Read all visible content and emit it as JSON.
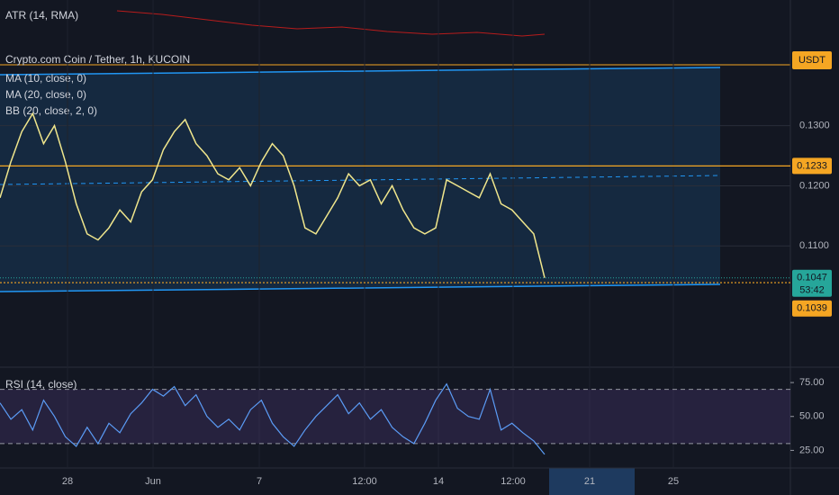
{
  "chart_data": {
    "type": "line",
    "title": "Crypto.com Coin / Tether, 1h, KUCOIN",
    "indicators": [
      "MA (10, close, 0)",
      "MA (20, close, 0)",
      "BB (20, close, 2, 0)"
    ],
    "atr_label": "ATR (14, RMA)",
    "currency": "USDT",
    "values": [
      0.118,
      0.124,
      0.129,
      0.132,
      0.127,
      0.13,
      0.124,
      0.117,
      0.112,
      0.111,
      0.113,
      0.116,
      0.114,
      0.119,
      0.121,
      0.126,
      0.129,
      0.131,
      0.127,
      0.125,
      0.122,
      0.121,
      0.123,
      0.12,
      0.124,
      0.127,
      0.125,
      0.12,
      0.113,
      0.112,
      0.115,
      0.118,
      0.122,
      0.12,
      0.121,
      0.117,
      0.12,
      0.116,
      0.113,
      0.112,
      0.113,
      0.121,
      0.12,
      0.119,
      0.118,
      0.122,
      0.117,
      0.116,
      0.114,
      0.112,
      0.1047
    ],
    "color": "#f0e68c",
    "ylim": [
      0.0903,
      0.1434
    ],
    "yticks": [
      {
        "value": 0.11,
        "label": "0.1100"
      },
      {
        "value": 0.12,
        "label": "0.1200"
      },
      {
        "value": 0.13,
        "label": "0.1300"
      }
    ],
    "levels": [
      {
        "value": 0.1233,
        "label": "0.1233",
        "color": "#f5a623"
      },
      {
        "value": 0.1039,
        "label": "0.1039",
        "color": "#f5a623"
      }
    ],
    "last_price": {
      "value": 0.1047,
      "label": "0.1047",
      "countdown": "53:42",
      "color": "#26a69a"
    },
    "xtick_labels": [
      "28",
      "Jun",
      "7",
      "12:00",
      "14",
      "12:00",
      "21",
      "25"
    ],
    "rsi": {
      "label": "RSI (14, close)",
      "values": [
        60,
        48,
        55,
        40,
        62,
        50,
        35,
        28,
        42,
        30,
        45,
        38,
        52,
        60,
        70,
        65,
        72,
        58,
        66,
        50,
        42,
        48,
        40,
        55,
        62,
        45,
        35,
        28,
        40,
        50,
        58,
        66,
        52,
        60,
        48,
        55,
        42,
        35,
        30,
        45,
        62,
        74,
        56,
        50,
        48,
        70,
        40,
        45,
        38,
        32,
        22
      ],
      "color": "#5b9cf6",
      "ylim": [
        12,
        85
      ],
      "yticks": [
        {
          "value": 25,
          "label": "25.00"
        },
        {
          "value": 50,
          "label": "50.00"
        },
        {
          "value": 75,
          "label": "75.00"
        }
      ],
      "bands": [
        30,
        70
      ]
    }
  }
}
